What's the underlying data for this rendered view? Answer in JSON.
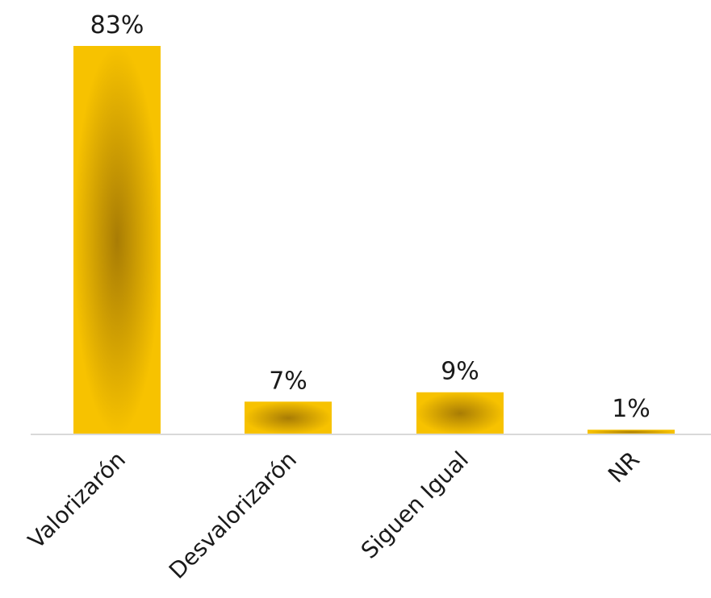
{
  "chart_data": {
    "type": "bar",
    "title": "",
    "xlabel": "",
    "ylabel": "",
    "categories": [
      "Valorizarón",
      "Desvalorizarón",
      "Siguen Igual",
      "NR"
    ],
    "values": [
      83,
      7,
      9,
      1
    ],
    "value_labels": [
      "83%",
      "7%",
      "9%",
      "1%"
    ],
    "unit": "%",
    "ylim": [
      0,
      83
    ],
    "grid": false,
    "legend": "none",
    "colors": {
      "bar_edge": "#F7C200",
      "bar_center": "#A87C05",
      "baseline": "#d9d9d9",
      "text": "#1a1a1a"
    }
  }
}
